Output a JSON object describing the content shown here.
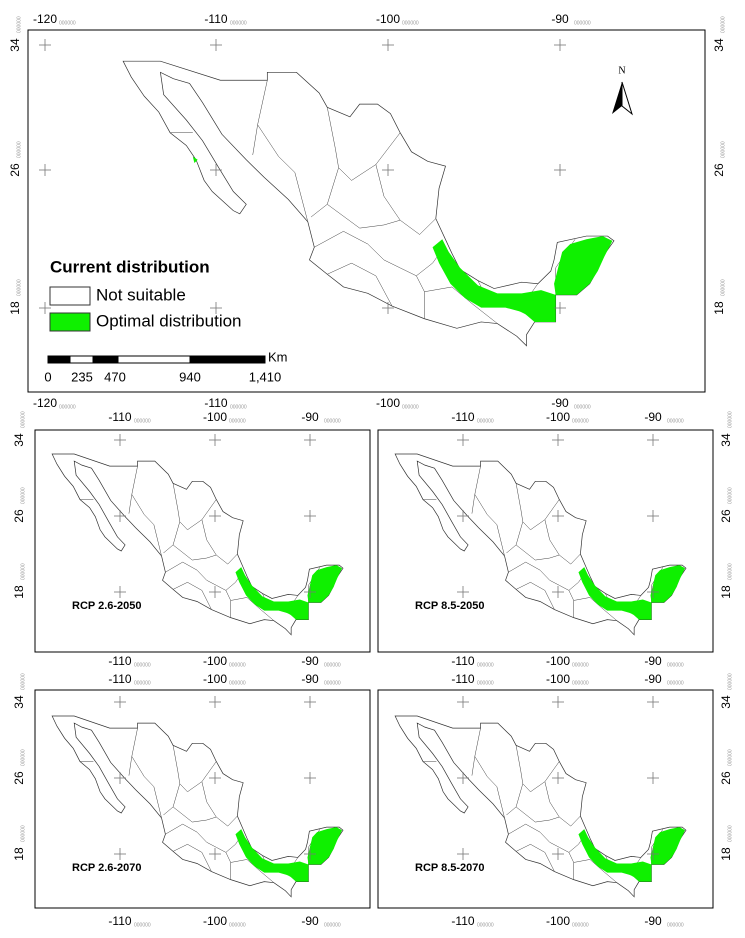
{
  "tick_suffix": "000000",
  "main": {
    "top_ticks": [
      "-120",
      "-110",
      "-100",
      "-90"
    ],
    "bottom_ticks": [
      "-120",
      "-110",
      "-100",
      "-90"
    ],
    "left_ticks": [
      "34",
      "26",
      "18"
    ],
    "right_ticks": [
      "34",
      "26",
      "18"
    ],
    "north": "N",
    "legend": {
      "title": "Current distribution",
      "items": [
        "Not suitable",
        "Optimal distribution"
      ]
    },
    "scale": {
      "unit": "Km",
      "labels": [
        "0",
        "235",
        "470",
        "940",
        "1,410"
      ]
    }
  },
  "panels": [
    {
      "label": "RCP 2.6-2050",
      "top_ticks": [
        "-110",
        "-100",
        "-90"
      ],
      "bottom_ticks": [
        "-110",
        "-100",
        "-90"
      ],
      "side_ticks": [
        "34",
        "26",
        "18"
      ]
    },
    {
      "label": "RCP 8.5-2050",
      "top_ticks": [
        "-110",
        "-100",
        "-90"
      ],
      "bottom_ticks": [
        "-110",
        "-100",
        "-90"
      ],
      "side_ticks": [
        "34",
        "26",
        "18"
      ]
    },
    {
      "label": "RCP 2.6-2070",
      "top_ticks": [
        "-110",
        "-100",
        "-90"
      ],
      "bottom_ticks": [
        "-110",
        "-100",
        "-90"
      ],
      "side_ticks": [
        "34",
        "26",
        "18"
      ]
    },
    {
      "label": "RCP 8.5-2070",
      "top_ticks": [
        "-110",
        "-100",
        "-90"
      ],
      "bottom_ticks": [
        "-110",
        "-100",
        "-90"
      ],
      "side_ticks": [
        "34",
        "26",
        "18"
      ]
    }
  ]
}
